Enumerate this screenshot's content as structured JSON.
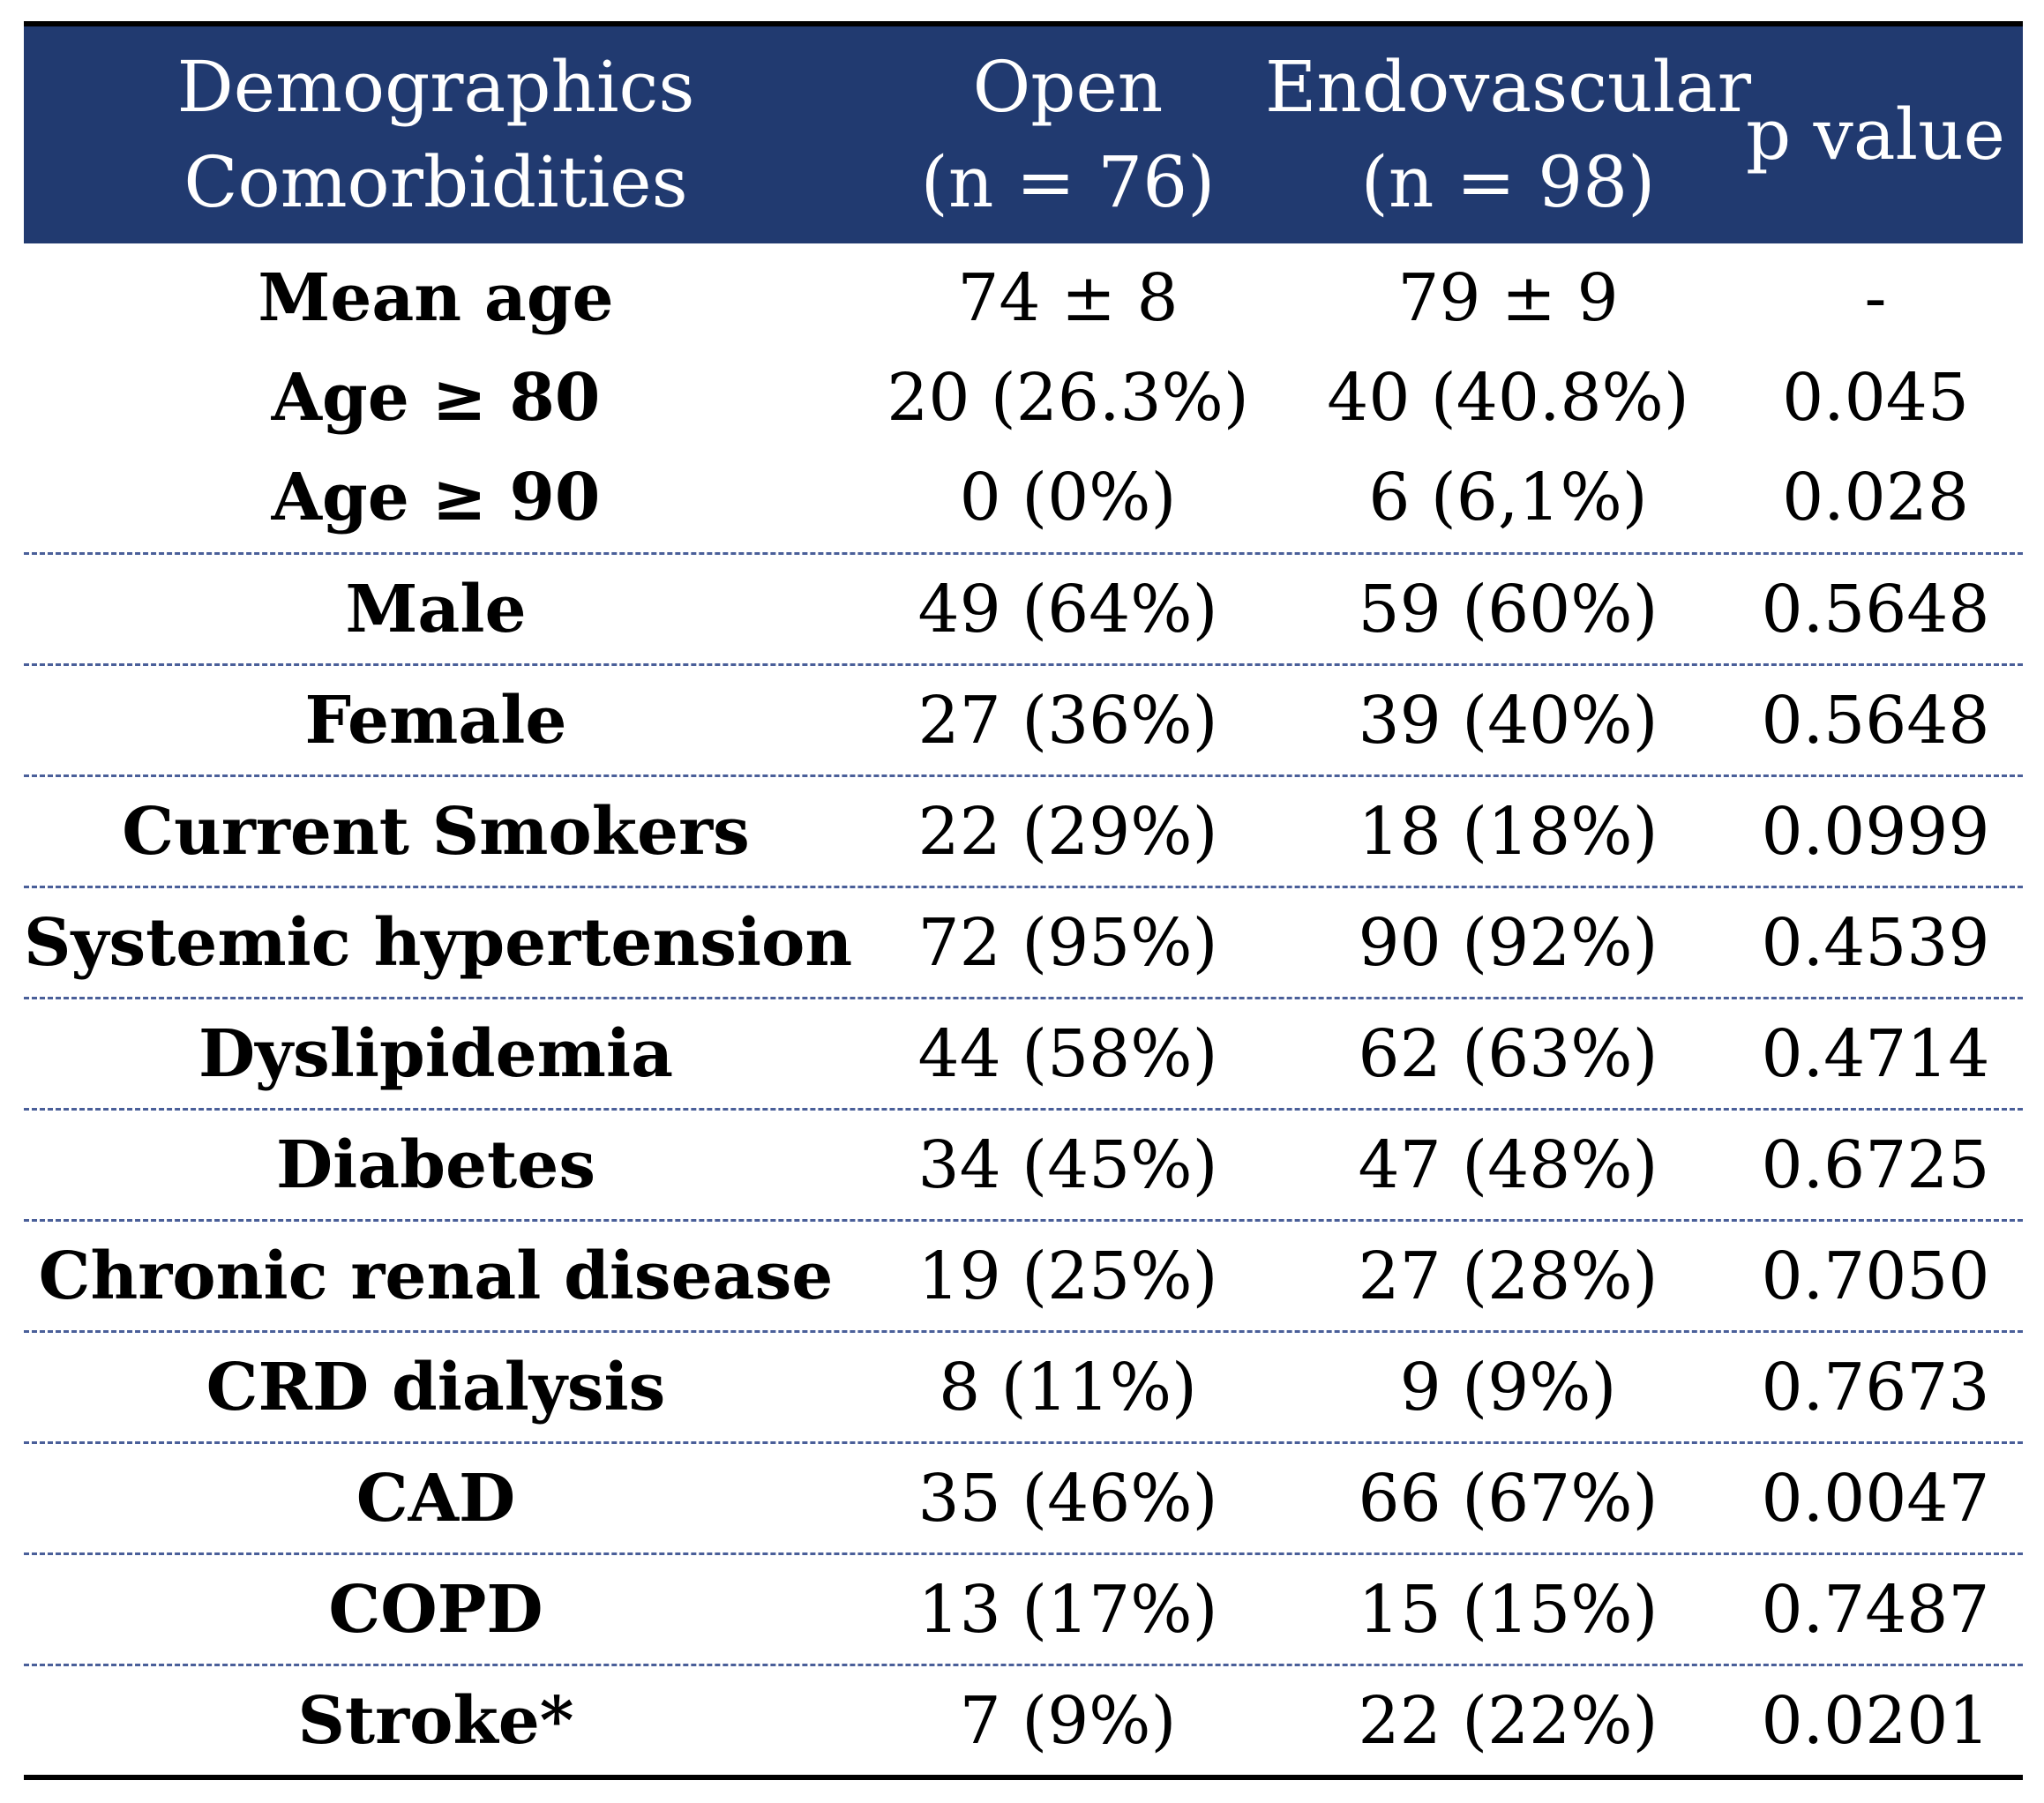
{
  "header": {
    "col1_line1": "Demographics",
    "col1_line2": "Comorbidities",
    "col2_line1": "Open",
    "col2_line2": "(n = 76)",
    "col3_line1": "Endovascular",
    "col3_line2": "(n = 98)",
    "col4": "p value"
  },
  "rows": [
    {
      "label": "Mean age",
      "open": "74 ± 8",
      "endo": "79 ± 9",
      "p": "-"
    },
    {
      "label": "Age ≥ 80",
      "open": "20 (26.3%)",
      "endo": "40 (40.8%)",
      "p": "0.045"
    },
    {
      "label": "Age ≥ 90",
      "open": "0 (0%)",
      "endo": "6 (6,1%)",
      "p": "0.028"
    },
    {
      "label": "Male",
      "open": "49 (64%)",
      "endo": "59 (60%)",
      "p": "0.5648"
    },
    {
      "label": "Female",
      "open": "27 (36%)",
      "endo": "39 (40%)",
      "p": "0.5648"
    },
    {
      "label": "Current Smokers",
      "open": "22 (29%)",
      "endo": "18 (18%)",
      "p": "0.0999"
    },
    {
      "label": "Systemic hypertension",
      "open": "72 (95%)",
      "endo": "90 (92%)",
      "p": "0.4539"
    },
    {
      "label": "Dyslipidemia",
      "open": "44 (58%)",
      "endo": "62 (63%)",
      "p": "0.4714"
    },
    {
      "label": "Diabetes",
      "open": "34 (45%)",
      "endo": "47 (48%)",
      "p": "0.6725"
    },
    {
      "label": "Chronic renal disease",
      "open": "19 (25%)",
      "endo": "27 (28%)",
      "p": "0.7050"
    },
    {
      "label": "CRD dialysis",
      "open": "8 (11%)",
      "endo": "9 (9%)",
      "p": "0.7673"
    },
    {
      "label": "CAD",
      "open": "35 (46%)",
      "endo": "66 (67%)",
      "p": "0.0047"
    },
    {
      "label": "COPD",
      "open": "13 (17%)",
      "endo": "15 (15%)",
      "p": "0.7487"
    },
    {
      "label": "Stroke*",
      "open": "7 (9%)",
      "endo": "22 (22%)",
      "p": "0.0201"
    }
  ],
  "colors": {
    "header_bg": "#213a70",
    "header_text": "#ffffff",
    "divider": "#4a5f99"
  }
}
